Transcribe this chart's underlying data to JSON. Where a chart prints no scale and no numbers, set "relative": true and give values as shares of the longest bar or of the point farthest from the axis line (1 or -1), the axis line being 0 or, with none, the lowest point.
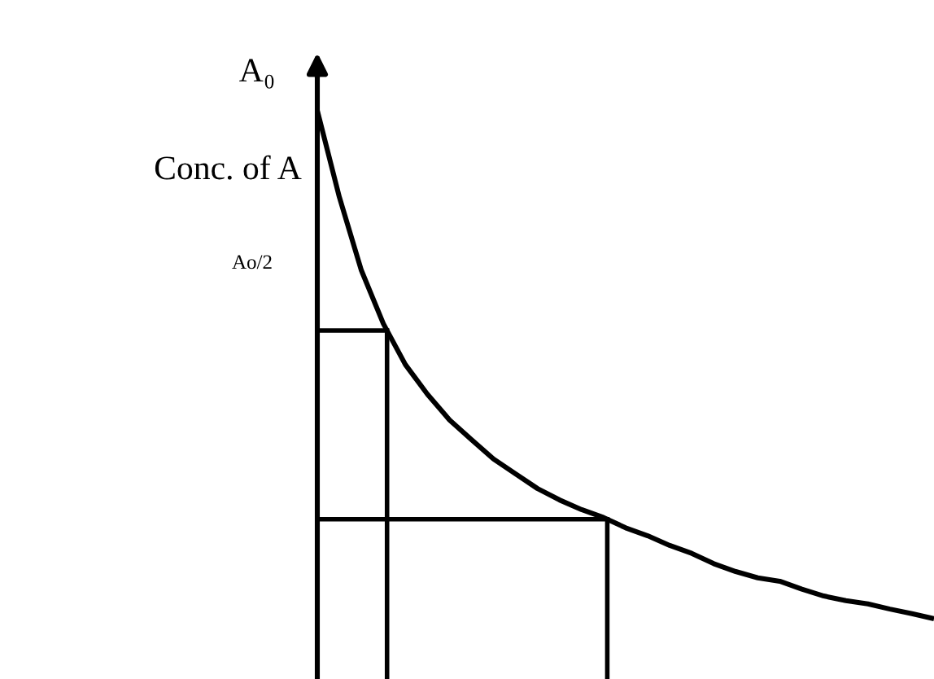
{
  "chart_data": {
    "type": "line",
    "relative": true,
    "ylabel": "Conc. of A",
    "grid": false,
    "legend": false,
    "marker": "none",
    "line_style": "solid",
    "annotations": [
      "A₀",
      "Ao/2"
    ],
    "categories": [
      null,
      null,
      null,
      null,
      null,
      null,
      null,
      null,
      null,
      null,
      null,
      null,
      null,
      null,
      null,
      null,
      null,
      null,
      null,
      null,
      null,
      null,
      null,
      null,
      null,
      null,
      null,
      null,
      null
    ],
    "series": [
      {
        "color": "#000000",
        "values": [
          1,
          0.848,
          0.719,
          0.625,
          0.553,
          0.501,
          0.456,
          0.421,
          0.387,
          0.361,
          0.335,
          0.315,
          0.298,
          0.284,
          0.266,
          0.252,
          0.235,
          0.221,
          0.203,
          0.189,
          0.178,
          0.172,
          0.158,
          0.146,
          0.138,
          0.132,
          0.123,
          0.115,
          0.106
        ]
      }
    ],
    "ref_lines": [
      {
        "axis": "y",
        "value": 0.613,
        "color": "#000000",
        "line_style": "solid"
      },
      {
        "axis": "y",
        "value": 0.281,
        "color": "#000000",
        "line_style": "solid"
      }
    ]
  }
}
